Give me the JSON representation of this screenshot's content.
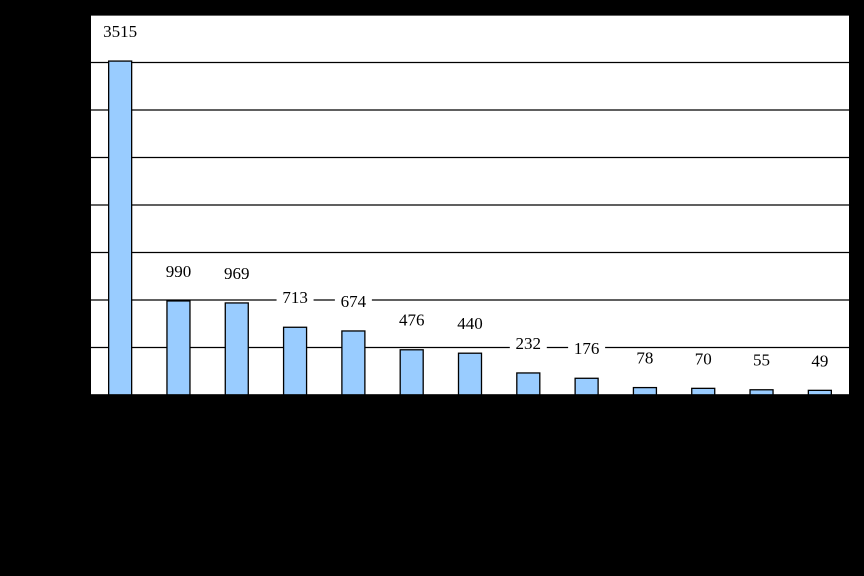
{
  "chart_data": {
    "type": "bar",
    "categories": [
      null,
      null,
      null,
      null,
      null,
      null,
      null,
      null,
      null,
      null,
      null,
      null,
      null
    ],
    "values": [
      3515,
      990,
      969,
      713,
      674,
      476,
      440,
      232,
      176,
      78,
      70,
      55,
      49
    ],
    "color": "#99ccff",
    "ylim": [
      0,
      4000
    ],
    "yticks": [
      0,
      500,
      1000,
      1500,
      2000,
      2500,
      3000,
      3500,
      4000
    ],
    "grid": true
  }
}
